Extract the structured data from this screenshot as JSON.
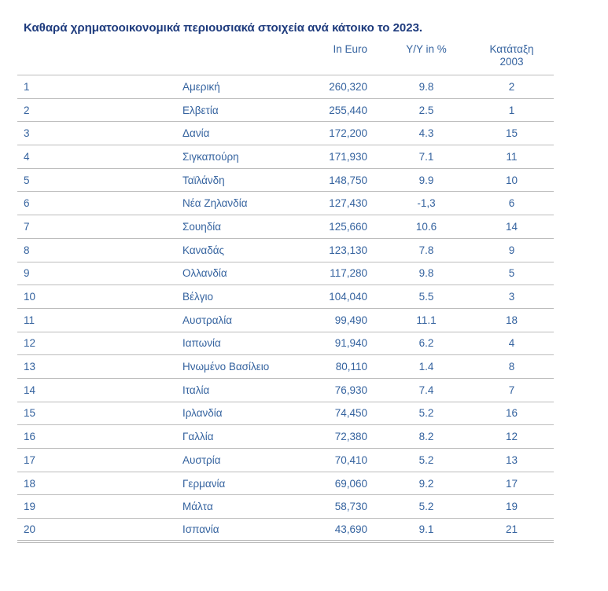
{
  "page": {
    "title": "Καθαρά χρηματοοικονομικά περιουσιακά στοιχεία ανά κάτοικο το 2023."
  },
  "table": {
    "column_headers": {
      "in_euro": "In Euro",
      "yoy": "Y/Y in %",
      "rank_2003_line1": "Κατάταξη",
      "rank_2003_line2": "2003"
    },
    "rows": [
      {
        "rank": "1",
        "country": "Αμερική",
        "in_euro": "260,320",
        "yoy": "9.8",
        "rank_2003": "2"
      },
      {
        "rank": "2",
        "country": "Ελβετία",
        "in_euro": "255,440",
        "yoy": "2.5",
        "rank_2003": "1"
      },
      {
        "rank": "3",
        "country": "Δανία",
        "in_euro": "172,200",
        "yoy": "4.3",
        "rank_2003": "15"
      },
      {
        "rank": "4",
        "country": "Σιγκαπούρη",
        "in_euro": "171,930",
        "yoy": "7.1",
        "rank_2003": "11"
      },
      {
        "rank": "5",
        "country": "Ταϊλάνδη",
        "in_euro": "148,750",
        "yoy": "9.9",
        "rank_2003": "10"
      },
      {
        "rank": "6",
        "country": "Νέα Ζηλανδία",
        "in_euro": "127,430",
        "yoy": "-1,3",
        "rank_2003": "6"
      },
      {
        "rank": "7",
        "country": "Σουηδία",
        "in_euro": "125,660",
        "yoy": "10.6",
        "rank_2003": "14"
      },
      {
        "rank": "8",
        "country": "Καναδάς",
        "in_euro": "123,130",
        "yoy": "7.8",
        "rank_2003": "9"
      },
      {
        "rank": "9",
        "country": "Ολλανδία",
        "in_euro": "117,280",
        "yoy": "9.8",
        "rank_2003": "5"
      },
      {
        "rank": "10",
        "country": "Βέλγιο",
        "in_euro": "104,040",
        "yoy": "5.5",
        "rank_2003": "3"
      },
      {
        "rank": "11",
        "country": "Αυστραλία",
        "in_euro": "99,490",
        "yoy": "11.1",
        "rank_2003": "18"
      },
      {
        "rank": "12",
        "country": "Ιαπωνία",
        "in_euro": "91,940",
        "yoy": "6.2",
        "rank_2003": "4"
      },
      {
        "rank": "13",
        "country": "Ηνωμένο Βασίλειο",
        "in_euro": "80,110",
        "yoy": "1.4",
        "rank_2003": "8"
      },
      {
        "rank": "14",
        "country": "Ιταλία",
        "in_euro": "76,930",
        "yoy": "7.4",
        "rank_2003": "7"
      },
      {
        "rank": "15",
        "country": "Ιρλανδία",
        "in_euro": "74,450",
        "yoy": "5.2",
        "rank_2003": "16"
      },
      {
        "rank": "16",
        "country": "Γαλλία",
        "in_euro": "72,380",
        "yoy": "8.2",
        "rank_2003": "12"
      },
      {
        "rank": "17",
        "country": "Αυστρία",
        "in_euro": "70,410",
        "yoy": "5.2",
        "rank_2003": "13"
      },
      {
        "rank": "18",
        "country": "Γερμανία",
        "in_euro": "69,060",
        "yoy": "9.2",
        "rank_2003": "17"
      },
      {
        "rank": "19",
        "country": "Μάλτα",
        "in_euro": "58,730",
        "yoy": "5.2",
        "rank_2003": "19"
      },
      {
        "rank": "20",
        "country": "Ισπανία",
        "in_euro": "43,690",
        "yoy": "9.1",
        "rank_2003": "21"
      }
    ]
  },
  "colors": {
    "title_text": "#1e3b7d",
    "table_text": "#35639f",
    "row_divider": "#bdbdbd",
    "bottom_border": "#b5b5b5"
  }
}
